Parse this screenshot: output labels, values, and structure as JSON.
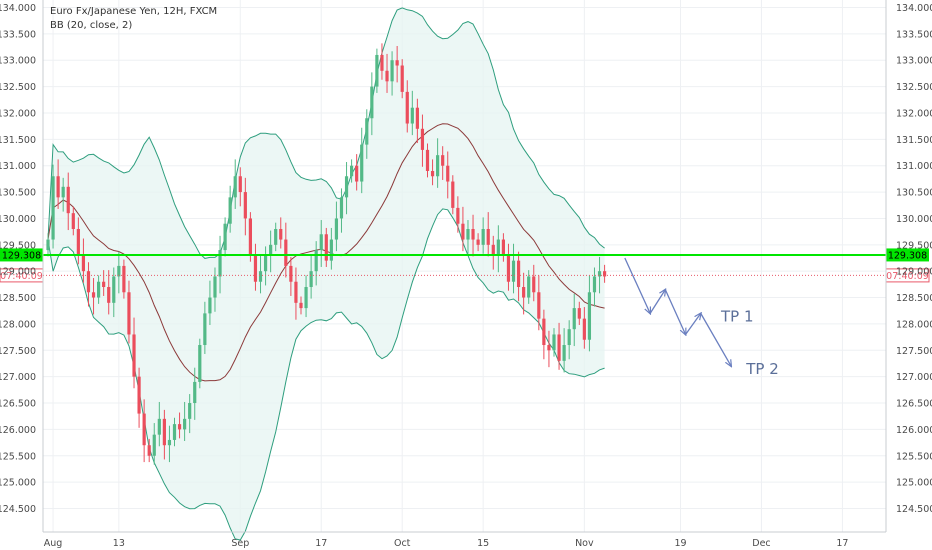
{
  "chart_data": {
    "type": "candlestick",
    "legend": {
      "symbol": "Euro Fx/Japanese Yen, 12H, FXCM",
      "indicator": "BB (20, close, 2)"
    },
    "y_axis": {
      "ylim": [
        124.2,
        134.2
      ],
      "tick_values": [
        124.5,
        125.0,
        125.5,
        126.0,
        126.5,
        127.0,
        127.5,
        128.0,
        128.5,
        129.0,
        129.5,
        130.0,
        130.5,
        131.0,
        131.5,
        132.0,
        132.5,
        133.0,
        133.5,
        134.0
      ],
      "tick_labels": [
        "124.500",
        "125.000",
        "125.500",
        "126.000",
        "126.500",
        "127.000",
        "127.500",
        "128.000",
        "128.500",
        "129.000",
        "129.500",
        "130.000",
        "130.500",
        "131.000",
        "131.500",
        "132.000",
        "132.500",
        "133.000",
        "133.500",
        "134.000"
      ]
    },
    "x_axis": {
      "tick_labels": [
        "Aug",
        "13",
        "Sep",
        "17",
        "Oct",
        "15",
        "Nov",
        "19",
        "Dec",
        "17"
      ]
    },
    "horizontal_line": {
      "value": 129.308,
      "label": "129.308",
      "color": "#00e600"
    },
    "last_price": {
      "value": 128.92,
      "label": "07:40:09",
      "color": "#e85a6a"
    },
    "annotations": [
      {
        "text": "TP 1",
        "x_bar": 133,
        "y": 128.05
      },
      {
        "text": "TP 2",
        "x_bar": 138,
        "y": 127.05
      }
    ],
    "projection_path": [
      {
        "x_bar": 114,
        "y": 129.25
      },
      {
        "x_bar": 119,
        "y": 128.2
      },
      {
        "x_bar": 122,
        "y": 128.65
      },
      {
        "x_bar": 126,
        "y": 127.8
      },
      {
        "x_bar": 129,
        "y": 128.2
      },
      {
        "x_bar": 135,
        "y": 127.2
      }
    ],
    "colors": {
      "up": "#53b987",
      "down": "#eb4d5c",
      "band": "#2e9e7e",
      "band_fill": "#e6f4f1",
      "basis": "#8c3a3a",
      "arrow": "#6a7fc0",
      "grid": "#eef0f3"
    },
    "price_path": [
      129.6,
      130.8,
      130.4,
      130.6,
      130.1,
      129.8,
      129.3,
      129.0,
      128.6,
      128.5,
      128.8,
      128.7,
      128.4,
      128.9,
      129.1,
      128.6,
      127.8,
      127.0,
      126.3,
      125.7,
      125.5,
      125.9,
      126.2,
      125.7,
      125.8,
      126.1,
      126.0,
      126.2,
      126.5,
      126.9,
      127.6,
      128.2,
      128.5,
      128.9,
      129.4,
      129.9,
      130.4,
      130.8,
      130.5,
      130.0,
      129.3,
      128.8,
      129.0,
      129.3,
      129.5,
      129.8,
      129.6,
      129.1,
      128.8,
      128.4,
      128.3,
      128.7,
      129.0,
      129.4,
      129.7,
      129.2,
      129.6,
      130.0,
      130.4,
      130.8,
      131.0,
      130.7,
      131.4,
      131.9,
      132.5,
      133.1,
      132.8,
      132.6,
      133.0,
      132.9,
      132.4,
      131.8,
      132.1,
      131.7,
      131.3,
      130.9,
      130.8,
      131.2,
      131.0,
      130.7,
      130.2,
      129.9,
      129.6,
      129.8,
      129.6,
      129.5,
      129.8,
      129.5,
      129.3,
      129.6,
      129.3,
      128.8,
      129.2,
      128.7,
      128.5,
      128.9,
      128.6,
      128.1,
      127.6,
      127.5,
      127.8,
      127.3,
      127.6,
      127.9,
      128.3,
      128.1,
      127.7,
      128.6,
      128.9,
      129.0,
      128.9
    ]
  }
}
